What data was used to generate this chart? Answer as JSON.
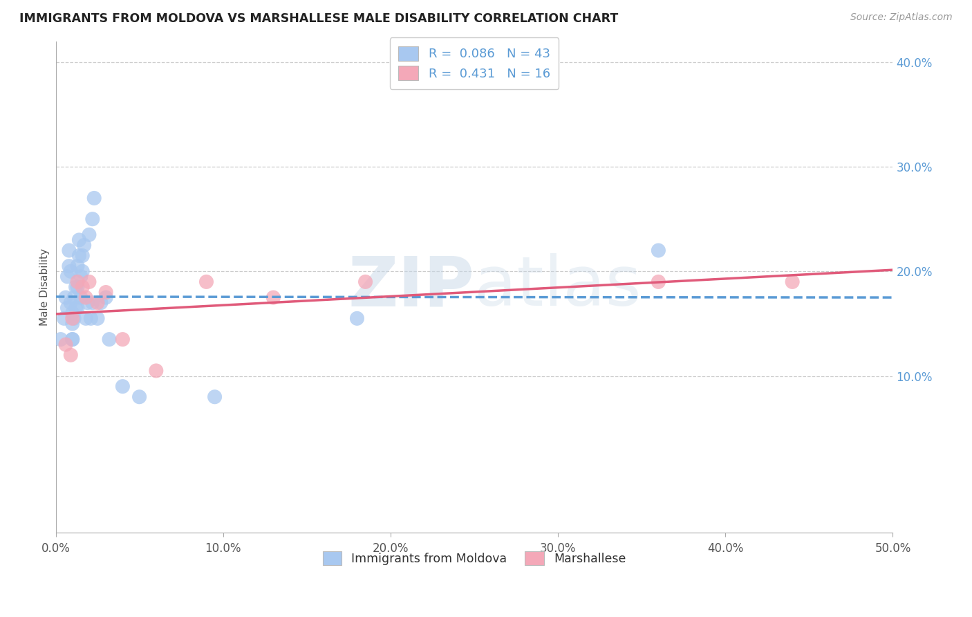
{
  "title": "IMMIGRANTS FROM MOLDOVA VS MARSHALLESE MALE DISABILITY CORRELATION CHART",
  "source": "Source: ZipAtlas.com",
  "ylabel": "Male Disability",
  "xlim": [
    0.0,
    0.5
  ],
  "ylim": [
    -0.05,
    0.42
  ],
  "x_ticks": [
    0.0,
    0.1,
    0.2,
    0.3,
    0.4,
    0.5
  ],
  "x_tick_labels": [
    "0.0%",
    "10.0%",
    "20.0%",
    "30.0%",
    "40.0%",
    "50.0%"
  ],
  "y_ticks": [
    0.1,
    0.2,
    0.3,
    0.4
  ],
  "y_tick_labels": [
    "10.0%",
    "20.0%",
    "30.0%",
    "40.0%"
  ],
  "grid_color": "#cccccc",
  "background_color": "#ffffff",
  "legend_r1": "R =  0.086",
  "legend_n1": "N = 43",
  "legend_r2": "R =  0.431",
  "legend_n2": "N = 16",
  "series1_color": "#a8c8f0",
  "series2_color": "#f4a8b8",
  "trendline1_color": "#5b9bd5",
  "trendline2_color": "#e05a7a",
  "moldova_x": [
    0.003,
    0.005,
    0.006,
    0.007,
    0.007,
    0.008,
    0.008,
    0.009,
    0.009,
    0.01,
    0.01,
    0.01,
    0.01,
    0.011,
    0.011,
    0.012,
    0.012,
    0.013,
    0.013,
    0.013,
    0.014,
    0.014,
    0.015,
    0.015,
    0.016,
    0.016,
    0.017,
    0.018,
    0.019,
    0.02,
    0.021,
    0.022,
    0.022,
    0.023,
    0.025,
    0.027,
    0.03,
    0.032,
    0.04,
    0.05,
    0.095,
    0.18,
    0.36
  ],
  "moldova_y": [
    0.135,
    0.155,
    0.175,
    0.165,
    0.195,
    0.205,
    0.22,
    0.17,
    0.2,
    0.135,
    0.15,
    0.135,
    0.16,
    0.155,
    0.175,
    0.165,
    0.185,
    0.165,
    0.185,
    0.205,
    0.215,
    0.23,
    0.175,
    0.195,
    0.215,
    0.2,
    0.225,
    0.155,
    0.17,
    0.235,
    0.155,
    0.17,
    0.25,
    0.27,
    0.155,
    0.17,
    0.175,
    0.135,
    0.09,
    0.08,
    0.08,
    0.155,
    0.22
  ],
  "marshallese_x": [
    0.006,
    0.009,
    0.01,
    0.013,
    0.016,
    0.018,
    0.02,
    0.025,
    0.03,
    0.04,
    0.06,
    0.09,
    0.13,
    0.185,
    0.36,
    0.44
  ],
  "marshallese_y": [
    0.13,
    0.12,
    0.155,
    0.19,
    0.185,
    0.175,
    0.19,
    0.17,
    0.18,
    0.135,
    0.105,
    0.19,
    0.175,
    0.19,
    0.19,
    0.19
  ]
}
